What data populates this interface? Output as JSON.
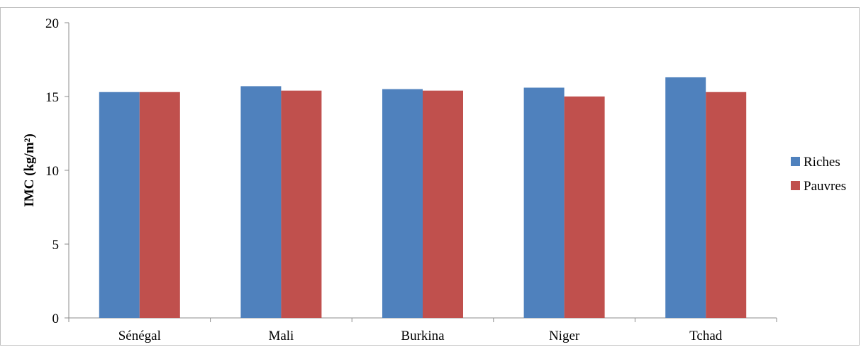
{
  "chart_data": {
    "type": "bar",
    "title": "",
    "xlabel": "",
    "ylabel": "IMC (kg/m²)",
    "ylim": [
      0,
      20
    ],
    "yticks": [
      0,
      5,
      10,
      15,
      20
    ],
    "grid": false,
    "legend_position": "right",
    "categories": [
      "Sénégal",
      "Mali",
      "Burkina",
      "Niger",
      "Tchad"
    ],
    "series": [
      {
        "name": "Riches",
        "color": "#4f81bd",
        "values": [
          15.3,
          15.7,
          15.5,
          15.6,
          16.3
        ]
      },
      {
        "name": "Pauvres",
        "color": "#c0504d",
        "values": [
          15.3,
          15.4,
          15.4,
          15.0,
          15.3
        ]
      }
    ]
  }
}
